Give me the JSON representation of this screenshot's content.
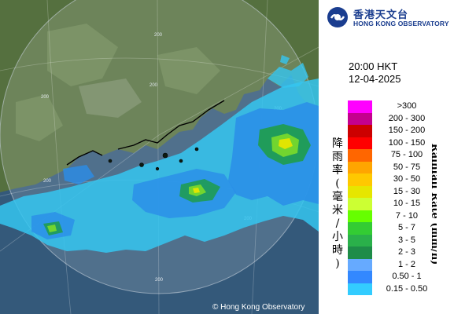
{
  "map": {
    "range_labels": [
      "200",
      "200",
      "200"
    ],
    "grid_labels": [
      "200",
      "200",
      "200",
      "200"
    ],
    "copyright": "© Hong Kong Observatory"
  },
  "header": {
    "org_zh": "香港天文台",
    "org_en": "HONG KONG OBSERVATORY",
    "logo_icon": "hko-logo-icon"
  },
  "timestamp": {
    "time": "20:00 HKT",
    "date": "12-04-2025"
  },
  "legend": {
    "title_en": "Rainfall Rate (mm/h)",
    "title_zh": [
      "降",
      "雨",
      "率",
      "(",
      "毫",
      "米",
      "/",
      "小",
      "時",
      ")"
    ],
    "items": [
      {
        "label": ">300",
        "color": "#ff00ff"
      },
      {
        "label": "200 - 300",
        "color": "#c4008f"
      },
      {
        "label": "150 - 200",
        "color": "#cc0000"
      },
      {
        "label": "100 - 150",
        "color": "#ff0000"
      },
      {
        "label": "75 - 100",
        "color": "#ff6600"
      },
      {
        "label": "50 - 75",
        "color": "#ffa500"
      },
      {
        "label": "30 - 50",
        "color": "#ffc800"
      },
      {
        "label": "15 - 30",
        "color": "#e6e600"
      },
      {
        "label": "10 - 15",
        "color": "#ccff33"
      },
      {
        "label": "7 - 10",
        "color": "#66ff00"
      },
      {
        "label": "5 - 7",
        "color": "#33cc33"
      },
      {
        "label": "3 - 5",
        "color": "#2ab04a"
      },
      {
        "label": "2 - 3",
        "color": "#1e8c48"
      },
      {
        "label": "1 - 2",
        "color": "#66aaff"
      },
      {
        "label": "0.50 - 1",
        "color": "#3388ff"
      },
      {
        "label": "0.15 - 0.50",
        "color": "#33ccff"
      }
    ]
  }
}
